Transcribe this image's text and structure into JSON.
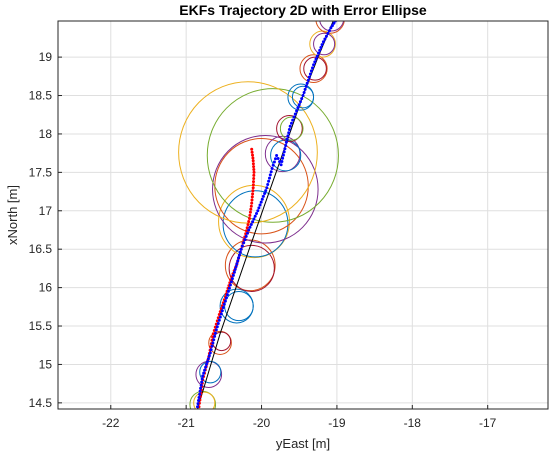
{
  "chart_data": {
    "type": "scatter",
    "title": "EKFs Trajectory 2D with Error Ellipse",
    "xlabel": "yEast [m]",
    "ylabel": "xNorth [m]",
    "xlim": [
      -22.7,
      -16.2
    ],
    "ylim": [
      14.42,
      19.47
    ],
    "grid": true,
    "xticks": [
      -22,
      -21,
      -20,
      -19,
      -18,
      -17
    ],
    "yticks": [
      14.5,
      15,
      15.5,
      16,
      16.5,
      17,
      17.5,
      18,
      18.5,
      19
    ],
    "xtick_labels": [
      "-22",
      "-21",
      "-20",
      "-19",
      "-18",
      "-17"
    ],
    "ytick_labels": [
      "14.5",
      "15",
      "15.5",
      "16",
      "16.5",
      "17",
      "17.5",
      "18",
      "18.5",
      "19"
    ],
    "colors": {
      "ground_truth": "#000000",
      "ekf_a": "#ff0000",
      "ekf_b": "#0000ff",
      "ellipse_blue": "#0072bd",
      "ellipse_orange": "#d95319",
      "ellipse_yellow": "#edb120",
      "ellipse_purple": "#7e2f8e",
      "ellipse_green": "#77ac30",
      "ellipse_darkred": "#a2142f"
    },
    "series": [
      {
        "kind": "line",
        "color_key": "ground_truth",
        "x": [
          -20.85,
          -20.55,
          -20.2,
          -19.95,
          -19.7,
          -19.45,
          -19.25,
          -19.05
        ],
        "y": [
          14.42,
          15.4,
          16.4,
          17.1,
          17.8,
          18.5,
          19.0,
          19.47
        ]
      },
      {
        "kind": "points",
        "color_key": "ekf_a",
        "x": [
          -20.83,
          -20.78,
          -20.7,
          -20.64,
          -20.56,
          -20.48,
          -20.41,
          -20.33,
          -20.27,
          -20.21,
          -20.16,
          -20.13,
          -20.11,
          -20.1,
          -20.11,
          -20.13
        ],
        "y": [
          14.45,
          14.8,
          15.1,
          15.4,
          15.65,
          15.88,
          16.1,
          16.3,
          16.5,
          16.7,
          16.9,
          17.1,
          17.3,
          17.5,
          17.65,
          17.8
        ]
      },
      {
        "kind": "points",
        "color_key": "ekf_b",
        "x": [
          -20.85,
          -20.78,
          -20.68,
          -20.6,
          -20.52,
          -20.44,
          -20.36,
          -20.27,
          -20.17,
          -20.05,
          -19.93,
          -19.86,
          -19.8,
          -19.74,
          -19.62,
          -19.45,
          -19.31,
          -19.18,
          -19.08,
          -19.02
        ],
        "y": [
          14.45,
          14.85,
          15.15,
          15.45,
          15.7,
          15.95,
          16.2,
          16.5,
          16.75,
          17.0,
          17.3,
          17.55,
          17.72,
          17.6,
          18.1,
          18.5,
          18.9,
          19.2,
          19.38,
          19.47
        ]
      }
    ],
    "ellipses": [
      {
        "cx": -20.78,
        "cy": 14.48,
        "r": 0.17,
        "color_key": "ellipse_green"
      },
      {
        "cx": -20.76,
        "cy": 14.5,
        "r": 0.14,
        "color_key": "ellipse_yellow"
      },
      {
        "cx": -20.7,
        "cy": 14.87,
        "r": 0.17,
        "color_key": "ellipse_purple"
      },
      {
        "cx": -20.68,
        "cy": 14.9,
        "r": 0.14,
        "color_key": "ellipse_blue"
      },
      {
        "cx": -20.55,
        "cy": 15.28,
        "r": 0.15,
        "color_key": "ellipse_orange"
      },
      {
        "cx": -20.53,
        "cy": 15.3,
        "r": 0.12,
        "color_key": "ellipse_darkred"
      },
      {
        "cx": -20.33,
        "cy": 15.76,
        "r": 0.22,
        "color_key": "ellipse_blue"
      },
      {
        "cx": -20.3,
        "cy": 15.76,
        "r": 0.19,
        "color_key": "ellipse_blue"
      },
      {
        "cx": -20.15,
        "cy": 16.29,
        "r": 0.33,
        "color_key": "ellipse_orange"
      },
      {
        "cx": -20.13,
        "cy": 16.25,
        "r": 0.3,
        "color_key": "ellipse_darkred"
      },
      {
        "cx": -20.1,
        "cy": 16.86,
        "r": 0.47,
        "color_key": "ellipse_yellow"
      },
      {
        "cx": -20.08,
        "cy": 16.83,
        "r": 0.43,
        "color_key": "ellipse_blue"
      },
      {
        "cx": -19.95,
        "cy": 17.28,
        "r": 0.7,
        "color_key": "ellipse_purple"
      },
      {
        "cx": -20.0,
        "cy": 17.32,
        "r": 0.62,
        "color_key": "ellipse_orange"
      },
      {
        "cx": -19.85,
        "cy": 17.72,
        "r": 0.87,
        "color_key": "ellipse_green"
      },
      {
        "cx": -20.18,
        "cy": 17.76,
        "r": 0.92,
        "color_key": "ellipse_yellow"
      },
      {
        "cx": -19.72,
        "cy": 17.74,
        "r": 0.23,
        "color_key": "ellipse_purple"
      },
      {
        "cx": -19.68,
        "cy": 17.72,
        "r": 0.2,
        "color_key": "ellipse_blue"
      },
      {
        "cx": -19.63,
        "cy": 18.07,
        "r": 0.17,
        "color_key": "ellipse_darkred"
      },
      {
        "cx": -19.6,
        "cy": 18.07,
        "r": 0.15,
        "color_key": "ellipse_green"
      },
      {
        "cx": -19.48,
        "cy": 18.48,
        "r": 0.17,
        "color_key": "ellipse_blue"
      },
      {
        "cx": -19.45,
        "cy": 18.48,
        "r": 0.14,
        "color_key": "ellipse_blue"
      },
      {
        "cx": -19.31,
        "cy": 18.85,
        "r": 0.18,
        "color_key": "ellipse_orange"
      },
      {
        "cx": -19.29,
        "cy": 18.85,
        "r": 0.15,
        "color_key": "ellipse_darkred"
      },
      {
        "cx": -19.19,
        "cy": 19.17,
        "r": 0.17,
        "color_key": "ellipse_yellow"
      },
      {
        "cx": -19.17,
        "cy": 19.17,
        "r": 0.14,
        "color_key": "ellipse_purple"
      },
      {
        "cx": -19.09,
        "cy": 19.5,
        "r": 0.19,
        "color_key": "ellipse_orange"
      },
      {
        "cx": -19.07,
        "cy": 19.5,
        "r": 0.16,
        "color_key": "ellipse_purple"
      }
    ]
  }
}
